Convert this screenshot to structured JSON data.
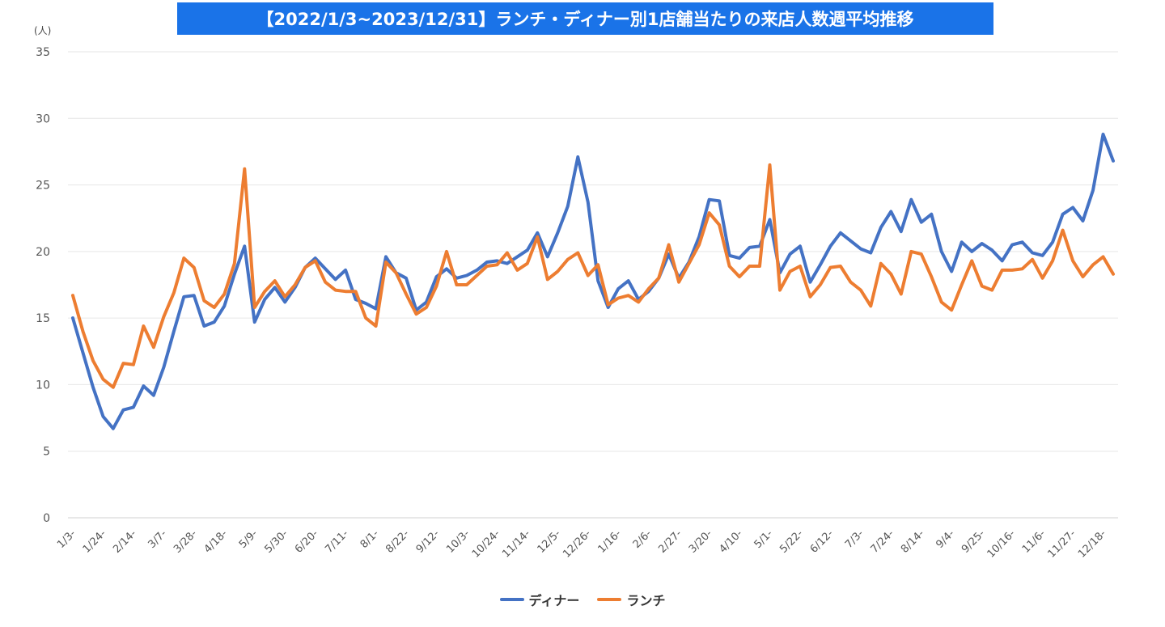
{
  "chart_data": {
    "type": "line",
    "title": "【2022/1/3~2023/12/31】ランチ・ディナー別1店舗当たりの来店人数週平均推移",
    "ylabel_unit": "(人)",
    "ylim": [
      0,
      35
    ],
    "yticks": [
      0,
      5,
      10,
      15,
      20,
      25,
      30,
      35
    ],
    "grid": true,
    "legend_position": "bottom",
    "x_tick_labels": [
      "1/3-",
      "1/24-",
      "2/14-",
      "3/7-",
      "3/28-",
      "4/18-",
      "5/9-",
      "5/30-",
      "6/20-",
      "7/11-",
      "8/1-",
      "8/22-",
      "9/12-",
      "10/3-",
      "10/24-",
      "11/14-",
      "12/5-",
      "12/26-",
      "1/16-",
      "2/6-",
      "2/27-",
      "3/20-",
      "4/10-",
      "5/1-",
      "5/22-",
      "6/12-",
      "7/3-",
      "7/24-",
      "8/14-",
      "9/4-",
      "9/25-",
      "10/16-",
      "11/6-",
      "11/27-",
      "12/18-"
    ],
    "x_tick_interval_weeks": 3,
    "series": [
      {
        "name": "ディナー",
        "color": "#4472c4",
        "values": [
          15.0,
          12.4,
          9.8,
          7.6,
          6.7,
          8.1,
          8.3,
          9.9,
          9.2,
          11.3,
          14.0,
          16.6,
          16.7,
          14.4,
          14.7,
          15.9,
          18.3,
          20.4,
          14.7,
          16.4,
          17.3,
          16.2,
          17.3,
          18.8,
          19.5,
          18.7,
          17.9,
          18.6,
          16.4,
          16.1,
          15.7,
          19.6,
          18.4,
          18.0,
          15.6,
          16.2,
          18.1,
          18.7,
          18.0,
          18.2,
          18.6,
          19.2,
          19.3,
          19.1,
          19.6,
          20.1,
          21.4,
          19.6,
          21.4,
          23.4,
          27.1,
          23.7,
          17.8,
          15.8,
          17.2,
          17.8,
          16.4,
          17.0,
          18.0,
          19.8,
          18.0,
          19.2,
          21.1,
          23.9,
          23.8,
          19.7,
          19.5,
          20.3,
          20.4,
          22.4,
          18.4,
          19.8,
          20.4,
          17.7,
          19.0,
          20.4,
          21.4,
          20.8,
          20.2,
          19.9,
          21.8,
          23.0,
          21.5,
          23.9,
          22.2,
          22.8,
          20.0,
          18.5,
          20.7,
          20.0,
          20.6,
          20.1,
          19.3,
          20.5,
          20.7,
          19.9,
          19.7,
          20.7,
          22.8,
          23.3,
          22.3,
          24.6,
          28.8,
          26.8
        ]
      },
      {
        "name": "ランチ",
        "color": "#ed7d31",
        "values": [
          16.7,
          14.0,
          11.8,
          10.4,
          9.8,
          11.6,
          11.5,
          14.4,
          12.8,
          15.1,
          16.9,
          19.5,
          18.8,
          16.3,
          15.8,
          16.8,
          19.1,
          26.2,
          15.8,
          17.0,
          17.8,
          16.6,
          17.5,
          18.8,
          19.3,
          17.7,
          17.1,
          17.0,
          17.0,
          15.0,
          14.4,
          19.2,
          18.4,
          16.8,
          15.3,
          15.8,
          17.4,
          20.0,
          17.5,
          17.5,
          18.2,
          18.9,
          19.0,
          19.9,
          18.6,
          19.1,
          21.1,
          17.9,
          18.5,
          19.4,
          19.9,
          18.2,
          19.0,
          16.0,
          16.5,
          16.7,
          16.2,
          17.2,
          18.0,
          20.5,
          17.7,
          19.1,
          20.5,
          22.9,
          22.0,
          18.9,
          18.1,
          18.9,
          18.9,
          26.5,
          17.1,
          18.5,
          18.9,
          16.6,
          17.5,
          18.8,
          18.9,
          17.7,
          17.1,
          15.9,
          19.1,
          18.3,
          16.8,
          20.0,
          19.8,
          18.1,
          16.2,
          15.6,
          17.5,
          19.3,
          17.4,
          17.1,
          18.6,
          18.6,
          18.7,
          19.4,
          18.0,
          19.3,
          21.6,
          19.3,
          18.1,
          19.0,
          19.6,
          18.3
        ]
      }
    ]
  }
}
